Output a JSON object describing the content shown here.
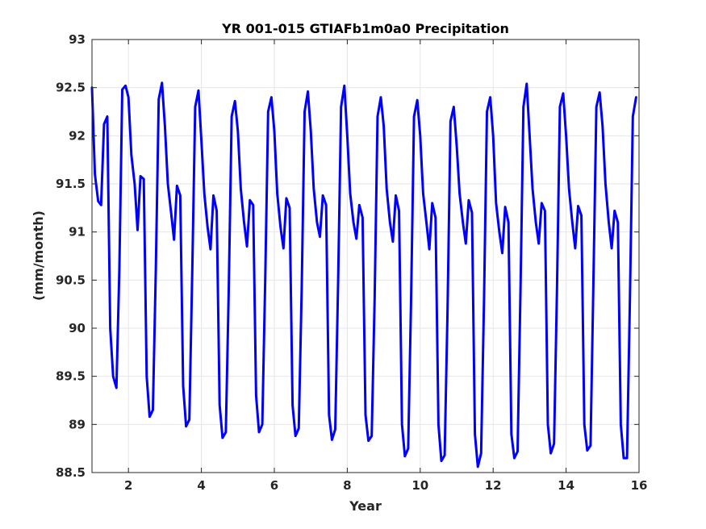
{
  "chart_data": {
    "type": "line",
    "title": "YR 001-015 GTIAFb1m0a0 Precipitation",
    "xlabel": "Year",
    "ylabel": "(mm/month)",
    "xlim": [
      1,
      16
    ],
    "ylim": [
      88.5,
      93
    ],
    "xticks": [
      2,
      4,
      6,
      8,
      10,
      12,
      14,
      16
    ],
    "yticks": [
      88.5,
      89,
      89.5,
      90,
      90.5,
      91,
      91.5,
      92,
      92.5,
      93
    ],
    "xtick_labels": [
      "2",
      "4",
      "6",
      "8",
      "10",
      "12",
      "14",
      "16"
    ],
    "ytick_labels": [
      "88.5",
      "89",
      "89.5",
      "90",
      "90.5",
      "91",
      "91.5",
      "92",
      "92.5",
      "93"
    ],
    "grid": true,
    "box": true,
    "series": [
      {
        "color": "#0000ff",
        "points": [
          [
            1.0,
            92.5
          ],
          [
            1.08,
            91.6
          ],
          [
            1.17,
            91.32
          ],
          [
            1.25,
            91.28
          ],
          [
            1.33,
            92.12
          ],
          [
            1.42,
            92.2
          ],
          [
            1.5,
            90.0
          ],
          [
            1.58,
            89.5
          ],
          [
            1.67,
            89.38
          ],
          [
            1.75,
            90.6
          ],
          [
            1.83,
            92.48
          ],
          [
            1.92,
            92.52
          ],
          [
            2.0,
            92.4
          ],
          [
            2.08,
            91.8
          ],
          [
            2.17,
            91.5
          ],
          [
            2.25,
            91.02
          ],
          [
            2.33,
            91.58
          ],
          [
            2.42,
            91.55
          ],
          [
            2.5,
            89.5
          ],
          [
            2.58,
            89.08
          ],
          [
            2.67,
            89.15
          ],
          [
            2.75,
            90.6
          ],
          [
            2.83,
            92.38
          ],
          [
            2.92,
            92.55
          ],
          [
            3.0,
            92.1
          ],
          [
            3.08,
            91.5
          ],
          [
            3.17,
            91.2
          ],
          [
            3.25,
            90.92
          ],
          [
            3.33,
            91.48
          ],
          [
            3.42,
            91.38
          ],
          [
            3.5,
            89.4
          ],
          [
            3.58,
            88.98
          ],
          [
            3.67,
            89.05
          ],
          [
            3.75,
            90.6
          ],
          [
            3.83,
            92.3
          ],
          [
            3.92,
            92.47
          ],
          [
            4.0,
            91.95
          ],
          [
            4.08,
            91.4
          ],
          [
            4.17,
            91.05
          ],
          [
            4.25,
            90.82
          ],
          [
            4.33,
            91.38
          ],
          [
            4.42,
            91.22
          ],
          [
            4.5,
            89.2
          ],
          [
            4.58,
            88.86
          ],
          [
            4.67,
            88.92
          ],
          [
            4.75,
            90.4
          ],
          [
            4.83,
            92.2
          ],
          [
            4.92,
            92.36
          ],
          [
            5.0,
            92.05
          ],
          [
            5.08,
            91.45
          ],
          [
            5.17,
            91.1
          ],
          [
            5.25,
            90.85
          ],
          [
            5.33,
            91.33
          ],
          [
            5.42,
            91.28
          ],
          [
            5.5,
            89.3
          ],
          [
            5.58,
            88.92
          ],
          [
            5.67,
            89.0
          ],
          [
            5.75,
            90.5
          ],
          [
            5.83,
            92.25
          ],
          [
            5.92,
            92.4
          ],
          [
            6.0,
            92.05
          ],
          [
            6.08,
            91.4
          ],
          [
            6.17,
            91.05
          ],
          [
            6.25,
            90.83
          ],
          [
            6.33,
            91.35
          ],
          [
            6.42,
            91.25
          ],
          [
            6.5,
            89.2
          ],
          [
            6.58,
            88.88
          ],
          [
            6.67,
            88.96
          ],
          [
            6.75,
            90.4
          ],
          [
            6.83,
            92.25
          ],
          [
            6.92,
            92.46
          ],
          [
            7.0,
            92.05
          ],
          [
            7.08,
            91.45
          ],
          [
            7.17,
            91.1
          ],
          [
            7.25,
            90.95
          ],
          [
            7.33,
            91.38
          ],
          [
            7.42,
            91.28
          ],
          [
            7.5,
            89.1
          ],
          [
            7.58,
            88.84
          ],
          [
            7.67,
            88.95
          ],
          [
            7.75,
            90.5
          ],
          [
            7.83,
            92.3
          ],
          [
            7.92,
            92.52
          ],
          [
            8.0,
            92.0
          ],
          [
            8.08,
            91.4
          ],
          [
            8.17,
            91.1
          ],
          [
            8.25,
            90.93
          ],
          [
            8.33,
            91.28
          ],
          [
            8.42,
            91.15
          ],
          [
            8.5,
            89.1
          ],
          [
            8.58,
            88.83
          ],
          [
            8.67,
            88.88
          ],
          [
            8.75,
            90.3
          ],
          [
            8.83,
            92.2
          ],
          [
            8.92,
            92.4
          ],
          [
            9.0,
            92.1
          ],
          [
            9.08,
            91.45
          ],
          [
            9.17,
            91.1
          ],
          [
            9.25,
            90.9
          ],
          [
            9.33,
            91.38
          ],
          [
            9.42,
            91.22
          ],
          [
            9.5,
            89.0
          ],
          [
            9.58,
            88.67
          ],
          [
            9.67,
            88.75
          ],
          [
            9.75,
            90.3
          ],
          [
            9.83,
            92.2
          ],
          [
            9.92,
            92.37
          ],
          [
            10.0,
            92.0
          ],
          [
            10.08,
            91.4
          ],
          [
            10.17,
            91.1
          ],
          [
            10.25,
            90.82
          ],
          [
            10.33,
            91.3
          ],
          [
            10.42,
            91.15
          ],
          [
            10.5,
            89.0
          ],
          [
            10.58,
            88.62
          ],
          [
            10.67,
            88.68
          ],
          [
            10.75,
            90.2
          ],
          [
            10.83,
            92.15
          ],
          [
            10.92,
            92.3
          ],
          [
            11.0,
            91.9
          ],
          [
            11.08,
            91.4
          ],
          [
            11.17,
            91.1
          ],
          [
            11.25,
            90.88
          ],
          [
            11.33,
            91.33
          ],
          [
            11.42,
            91.2
          ],
          [
            11.5,
            88.9
          ],
          [
            11.58,
            88.56
          ],
          [
            11.67,
            88.7
          ],
          [
            11.75,
            90.3
          ],
          [
            11.83,
            92.25
          ],
          [
            11.92,
            92.4
          ],
          [
            12.0,
            92.0
          ],
          [
            12.08,
            91.3
          ],
          [
            12.17,
            91.0
          ],
          [
            12.25,
            90.78
          ],
          [
            12.33,
            91.26
          ],
          [
            12.42,
            91.1
          ],
          [
            12.5,
            88.9
          ],
          [
            12.58,
            88.65
          ],
          [
            12.67,
            88.72
          ],
          [
            12.75,
            90.4
          ],
          [
            12.83,
            92.3
          ],
          [
            12.92,
            92.54
          ],
          [
            13.0,
            92.0
          ],
          [
            13.08,
            91.45
          ],
          [
            13.17,
            91.1
          ],
          [
            13.25,
            90.88
          ],
          [
            13.33,
            91.3
          ],
          [
            13.42,
            91.22
          ],
          [
            13.5,
            89.0
          ],
          [
            13.58,
            88.7
          ],
          [
            13.67,
            88.8
          ],
          [
            13.75,
            90.4
          ],
          [
            13.83,
            92.3
          ],
          [
            13.92,
            92.44
          ],
          [
            14.0,
            92.0
          ],
          [
            14.08,
            91.45
          ],
          [
            14.17,
            91.1
          ],
          [
            14.25,
            90.83
          ],
          [
            14.33,
            91.27
          ],
          [
            14.42,
            91.17
          ],
          [
            14.5,
            89.0
          ],
          [
            14.58,
            88.73
          ],
          [
            14.67,
            88.78
          ],
          [
            14.75,
            90.5
          ],
          [
            14.83,
            92.3
          ],
          [
            14.92,
            92.45
          ],
          [
            15.0,
            92.1
          ],
          [
            15.08,
            91.5
          ],
          [
            15.17,
            91.1
          ],
          [
            15.25,
            90.83
          ],
          [
            15.33,
            91.22
          ],
          [
            15.42,
            91.1
          ],
          [
            15.5,
            89.0
          ],
          [
            15.58,
            88.65
          ],
          [
            15.67,
            88.65
          ],
          [
            15.75,
            90.3
          ],
          [
            15.83,
            92.2
          ],
          [
            15.92,
            92.4
          ]
        ]
      }
    ]
  },
  "style": {
    "axis_color": "#262626",
    "grid_color": "#e6e6e6",
    "line_color": "#0000ff",
    "background": "#ffffff"
  }
}
